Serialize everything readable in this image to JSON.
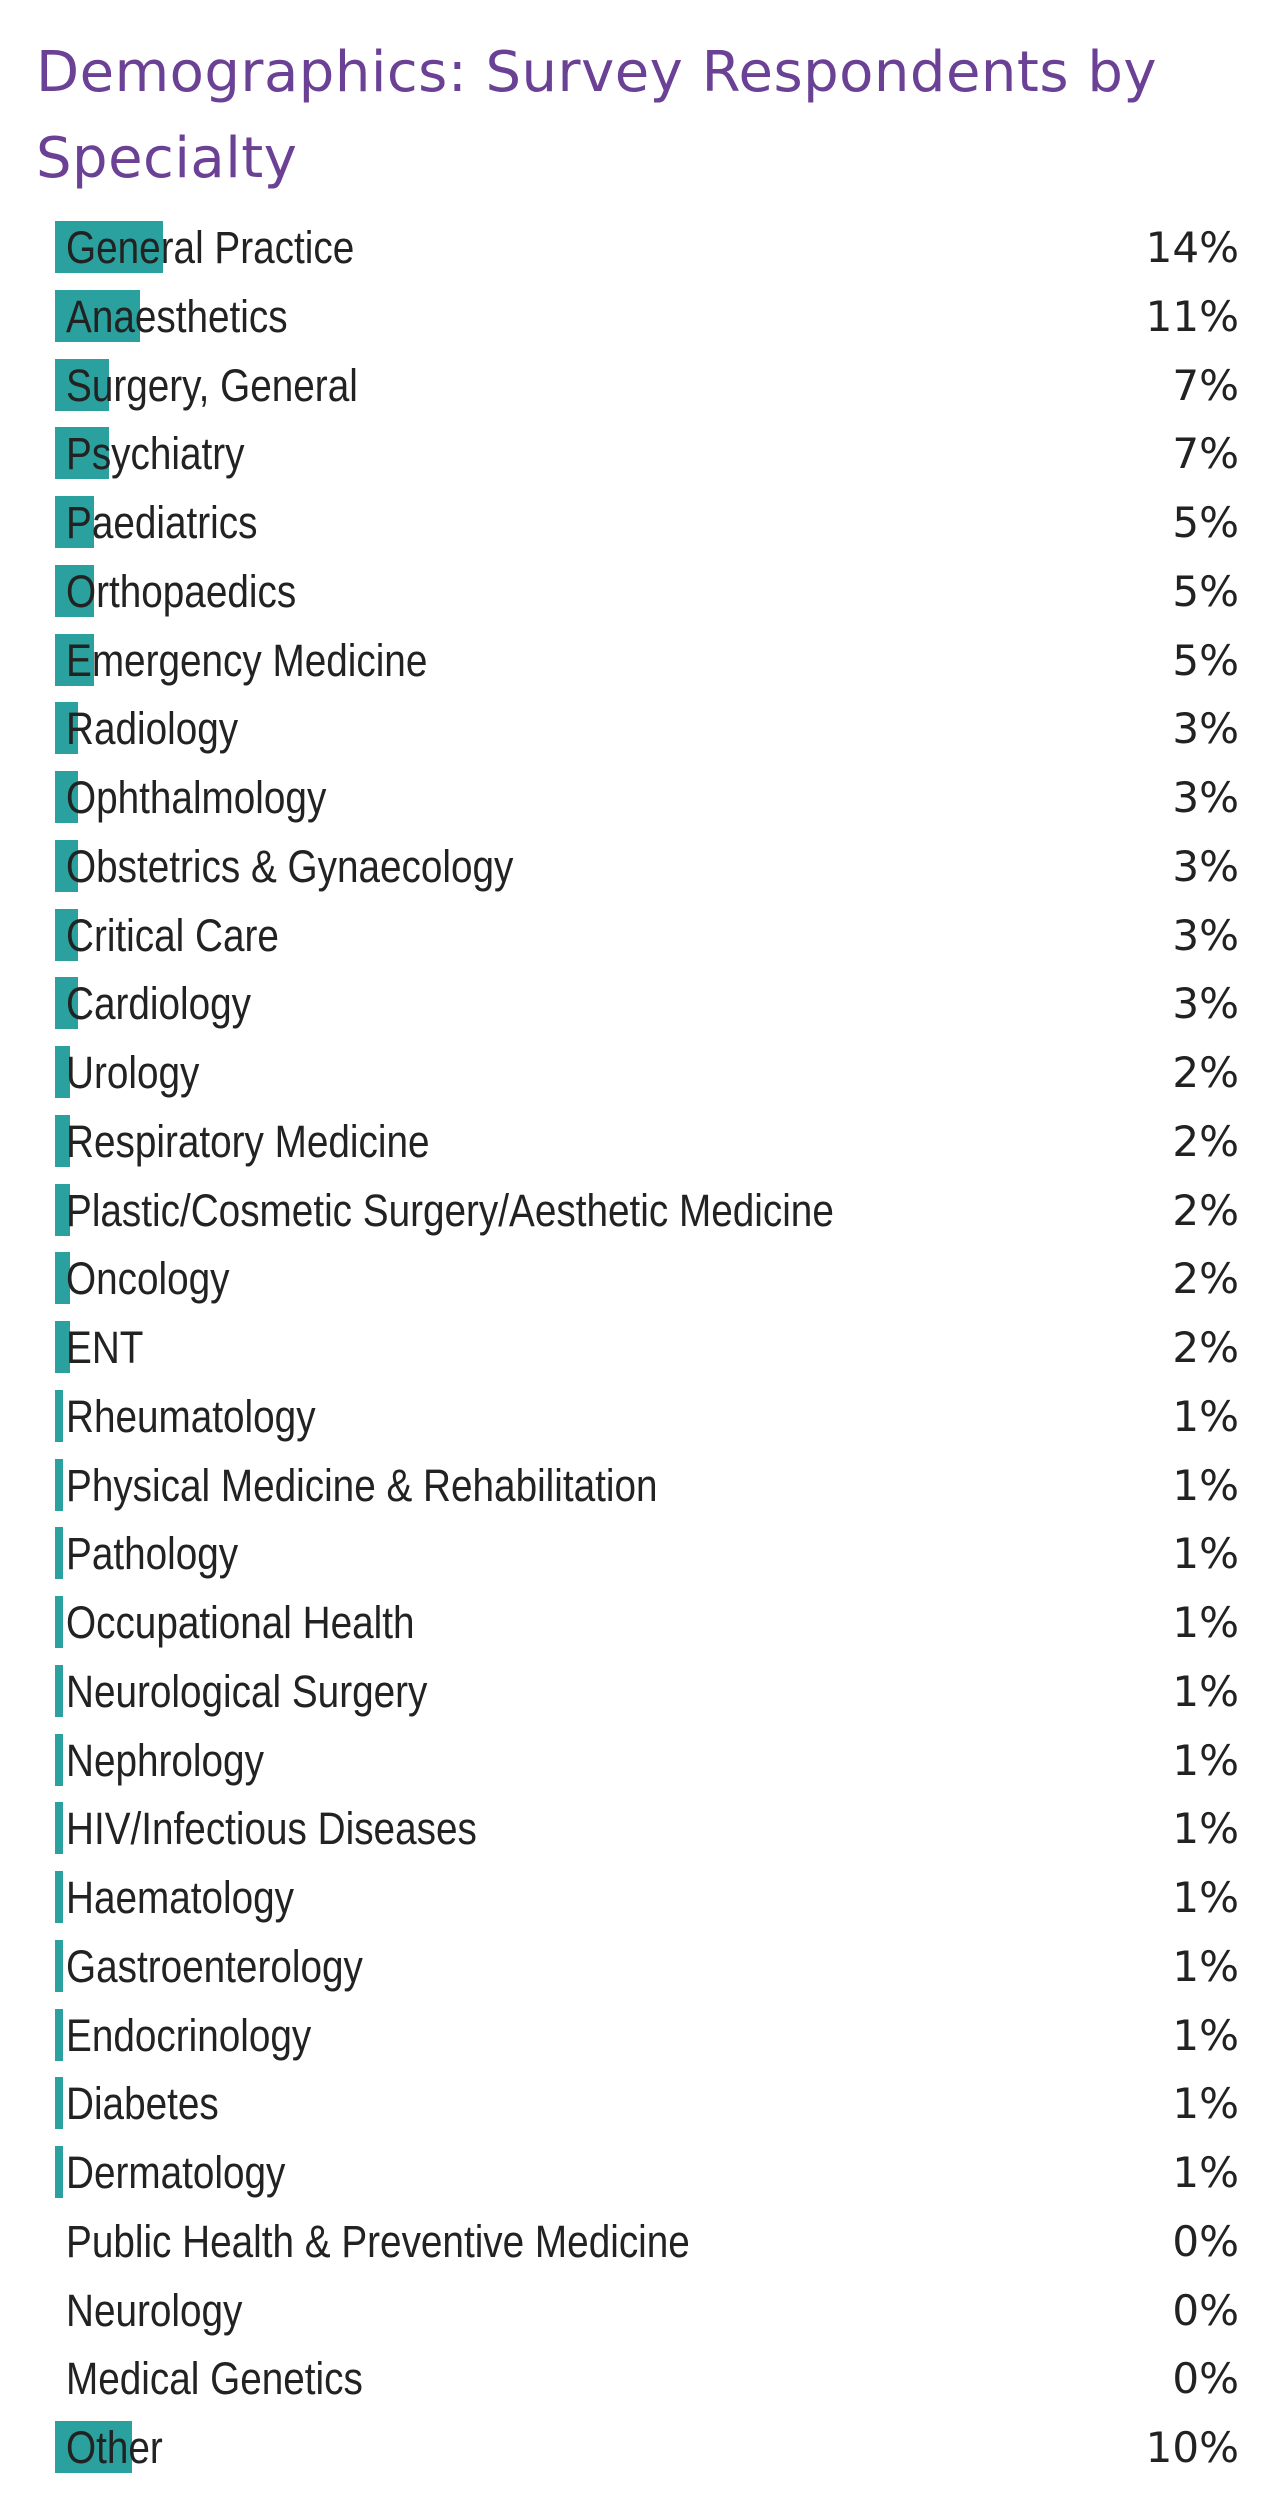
{
  "chart_data": {
    "type": "bar",
    "title": "Demographics: Survey Respondents by Specialty",
    "orientation": "horizontal",
    "value_suffix": "%",
    "bar_color": "#2aa19e",
    "title_color": "#6b4196",
    "text_color": "#222222",
    "xlim": [
      0,
      100
    ],
    "categories": [
      "General Practice",
      "Anaesthetics",
      "Surgery, General",
      "Psychiatry",
      "Paediatrics",
      "Orthopaedics",
      "Emergency Medicine",
      "Radiology",
      "Ophthalmology",
      "Obstetrics & Gynaecology",
      "Critical Care",
      "Cardiology",
      "Urology",
      "Respiratory Medicine",
      "Plastic/Cosmetic Surgery/Aesthetic Medicine",
      "Oncology",
      "ENT",
      "Rheumatology",
      "Physical Medicine & Rehabilitation",
      "Pathology",
      "Occupational Health",
      "Neurological Surgery",
      "Nephrology",
      "HIV/Infectious Diseases",
      "Haematology",
      "Gastroenterology",
      "Endocrinology",
      "Diabetes",
      "Dermatology",
      "Public Health & Preventive Medicine",
      "Neurology",
      "Medical Genetics",
      "Other"
    ],
    "values": [
      14,
      11,
      7,
      7,
      5,
      5,
      5,
      3,
      3,
      3,
      3,
      3,
      2,
      2,
      2,
      2,
      2,
      1,
      1,
      1,
      1,
      1,
      1,
      1,
      1,
      1,
      1,
      1,
      1,
      0,
      0,
      0,
      10
    ],
    "labels": [
      "14%",
      "11%",
      "7%",
      "7%",
      "5%",
      "5%",
      "5%",
      "3%",
      "3%",
      "3%",
      "3%",
      "3%",
      "2%",
      "2%",
      "2%",
      "2%",
      "2%",
      "1%",
      "1%",
      "1%",
      "1%",
      "1%",
      "1%",
      "1%",
      "1%",
      "1%",
      "1%",
      "1%",
      "1%",
      "0%",
      "0%",
      "0%",
      "10%"
    ]
  }
}
